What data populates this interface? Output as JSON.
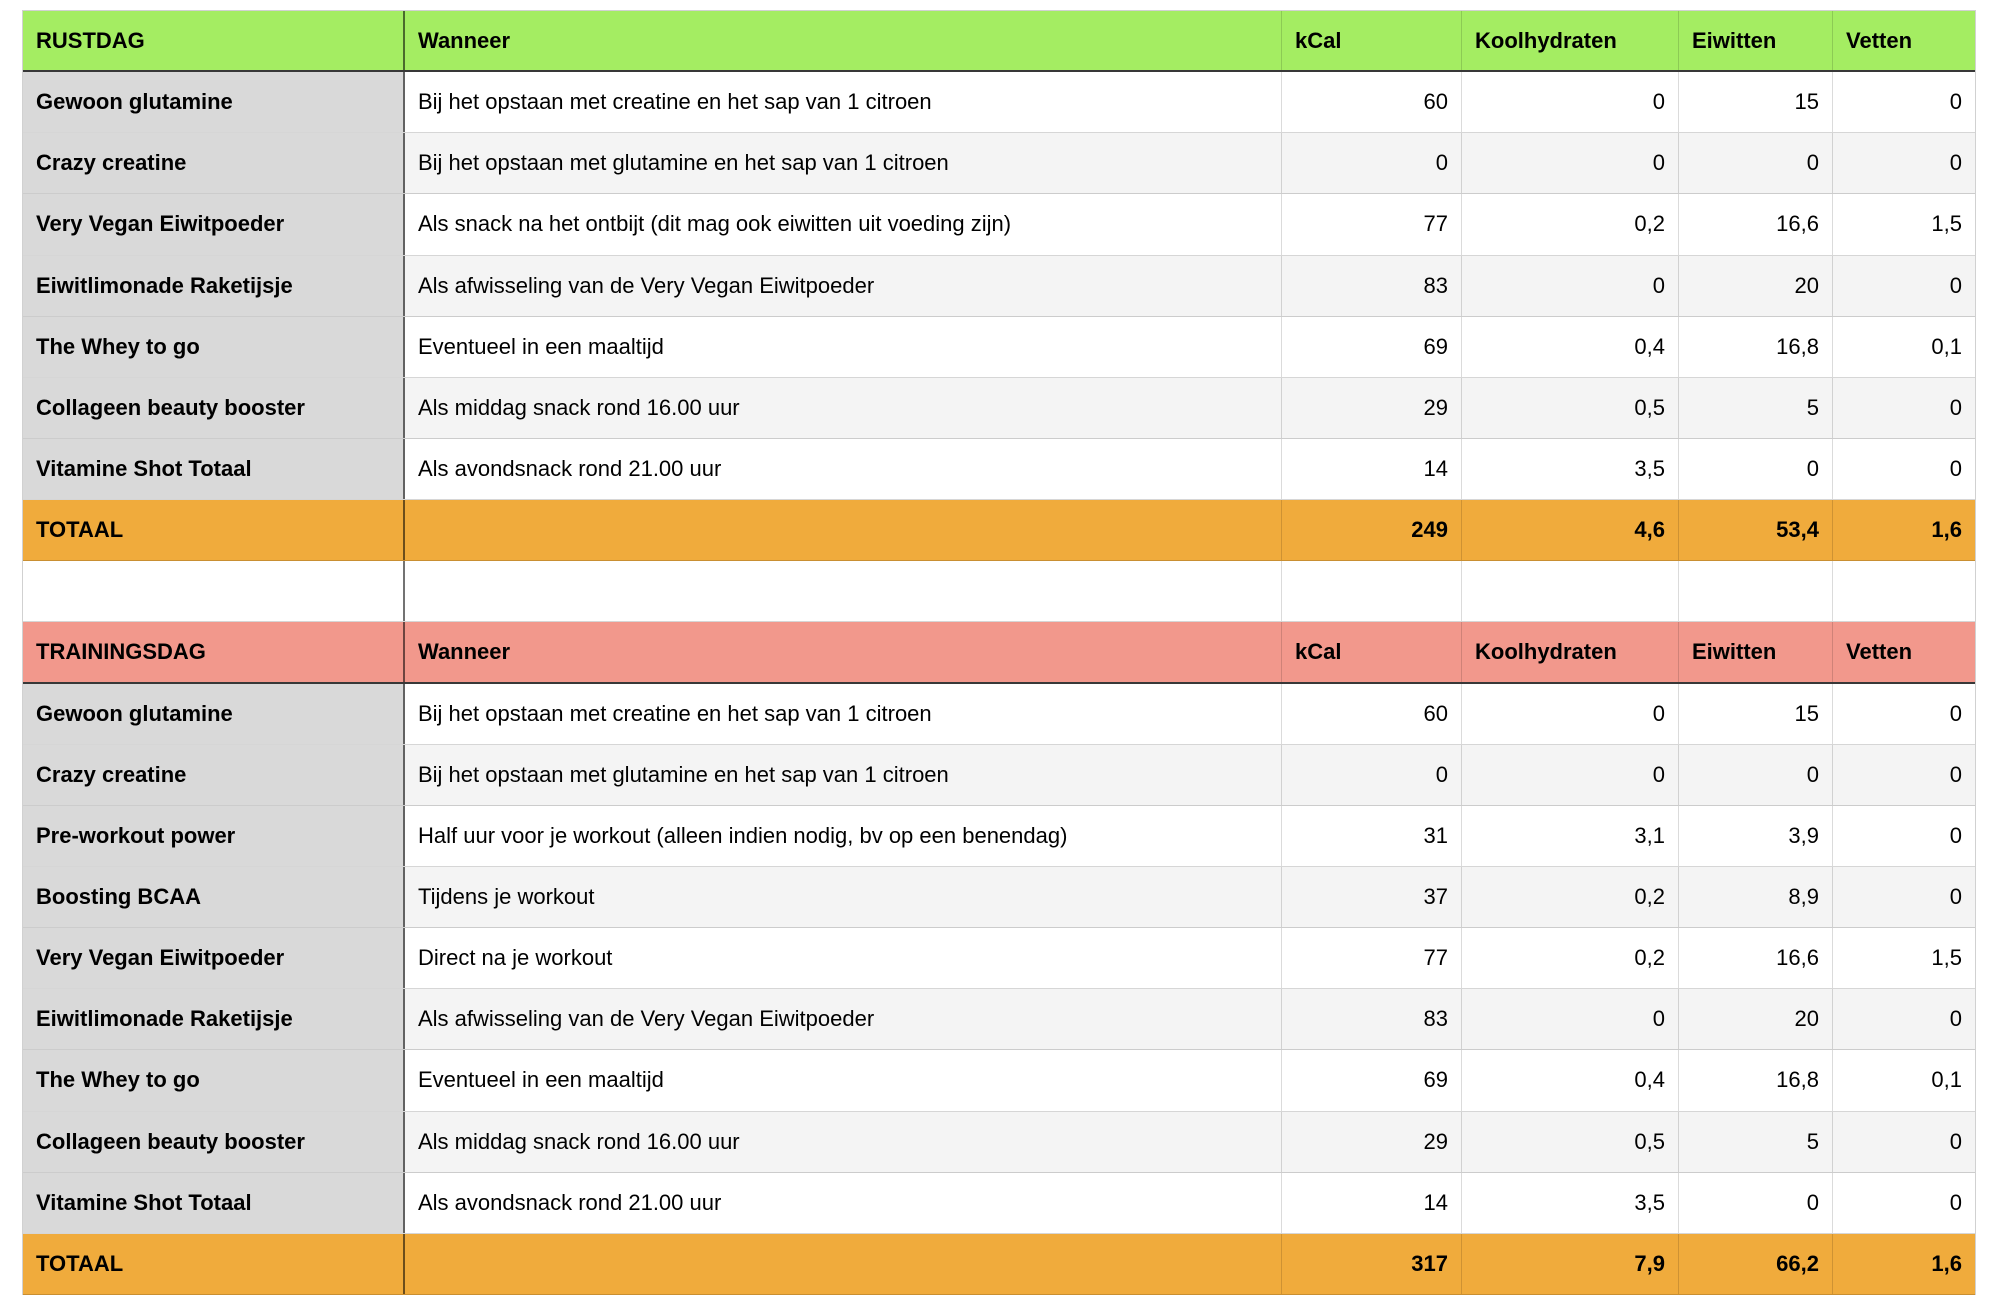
{
  "table": {
    "columns": {
      "wanneer": "Wanneer",
      "kcal": "kCal",
      "koolhydraten": "Koolhydraten",
      "eiwitten": "Eiwitten",
      "vetten": "Vetten"
    },
    "colors": {
      "rustdag_header": "#a4ed62",
      "trainingsdag_header": "#f2988c",
      "total_row": "#f0ab3c",
      "name_column": "#d9d9d9",
      "row_alt": "#f4f4f4"
    },
    "sections": [
      {
        "title": "RUSTDAG",
        "header_color": "#a4ed62",
        "rows": [
          {
            "name": "Gewoon glutamine",
            "wanneer": "Bij het opstaan met creatine en het sap van 1 citroen",
            "kcal": "60",
            "koolhydraten": "0",
            "eiwitten": "15",
            "vetten": "0"
          },
          {
            "name": "Crazy creatine",
            "wanneer": "Bij het opstaan met glutamine en het sap van 1 citroen",
            "kcal": "0",
            "koolhydraten": "0",
            "eiwitten": "0",
            "vetten": "0"
          },
          {
            "name": "Very Vegan Eiwitpoeder",
            "wanneer": "Als snack na het ontbijt (dit mag ook eiwitten uit voeding zijn)",
            "kcal": "77",
            "koolhydraten": "0,2",
            "eiwitten": "16,6",
            "vetten": "1,5"
          },
          {
            "name": "Eiwitlimonade Raketijsje",
            "wanneer": "Als afwisseling van de Very Vegan Eiwitpoeder",
            "kcal": "83",
            "koolhydraten": "0",
            "eiwitten": "20",
            "vetten": "0"
          },
          {
            "name": "The Whey to go",
            "wanneer": "Eventueel in een maaltijd",
            "kcal": "69",
            "koolhydraten": "0,4",
            "eiwitten": "16,8",
            "vetten": "0,1"
          },
          {
            "name": "Collageen beauty booster",
            "wanneer": "Als middag snack rond 16.00 uur",
            "kcal": "29",
            "koolhydraten": "0,5",
            "eiwitten": "5",
            "vetten": "0"
          },
          {
            "name": "Vitamine Shot Totaal",
            "wanneer": "Als avondsnack rond 21.00 uur",
            "kcal": "14",
            "koolhydraten": "3,5",
            "eiwitten": "0",
            "vetten": "0"
          }
        ],
        "total": {
          "label": "TOTAAL",
          "kcal": "249",
          "koolhydraten": "4,6",
          "eiwitten": "53,4",
          "vetten": "1,6"
        }
      },
      {
        "title": "TRAININGSDAG",
        "header_color": "#f2988c",
        "rows": [
          {
            "name": "Gewoon glutamine",
            "wanneer": "Bij het opstaan met creatine en het sap van 1 citroen",
            "kcal": "60",
            "koolhydraten": "0",
            "eiwitten": "15",
            "vetten": "0"
          },
          {
            "name": "Crazy creatine",
            "wanneer": "Bij het opstaan met glutamine en het sap van 1 citroen",
            "kcal": "0",
            "koolhydraten": "0",
            "eiwitten": "0",
            "vetten": "0"
          },
          {
            "name": "Pre-workout power",
            "wanneer": "Half uur voor je workout (alleen indien nodig, bv op een benendag)",
            "kcal": "31",
            "koolhydraten": "3,1",
            "eiwitten": "3,9",
            "vetten": "0"
          },
          {
            "name": "Boosting BCAA",
            "wanneer": "Tijdens je workout",
            "kcal": "37",
            "koolhydraten": "0,2",
            "eiwitten": "8,9",
            "vetten": "0"
          },
          {
            "name": "Very Vegan Eiwitpoeder",
            "wanneer": "Direct na je workout",
            "kcal": "77",
            "koolhydraten": "0,2",
            "eiwitten": "16,6",
            "vetten": "1,5"
          },
          {
            "name": "Eiwitlimonade Raketijsje",
            "wanneer": "Als afwisseling van de Very Vegan Eiwitpoeder",
            "kcal": "83",
            "koolhydraten": "0",
            "eiwitten": "20",
            "vetten": "0"
          },
          {
            "name": "The Whey to go",
            "wanneer": "Eventueel in een maaltijd",
            "kcal": "69",
            "koolhydraten": "0,4",
            "eiwitten": "16,8",
            "vetten": "0,1"
          },
          {
            "name": "Collageen beauty booster",
            "wanneer": "Als middag snack rond 16.00 uur",
            "kcal": "29",
            "koolhydraten": "0,5",
            "eiwitten": "5",
            "vetten": "0"
          },
          {
            "name": "Vitamine Shot Totaal",
            "wanneer": "Als avondsnack rond 21.00 uur",
            "kcal": "14",
            "koolhydraten": "3,5",
            "eiwitten": "0",
            "vetten": "0"
          }
        ],
        "total": {
          "label": "TOTAAL",
          "kcal": "317",
          "koolhydraten": "7,9",
          "eiwitten": "66,2",
          "vetten": "1,6"
        }
      }
    ]
  }
}
